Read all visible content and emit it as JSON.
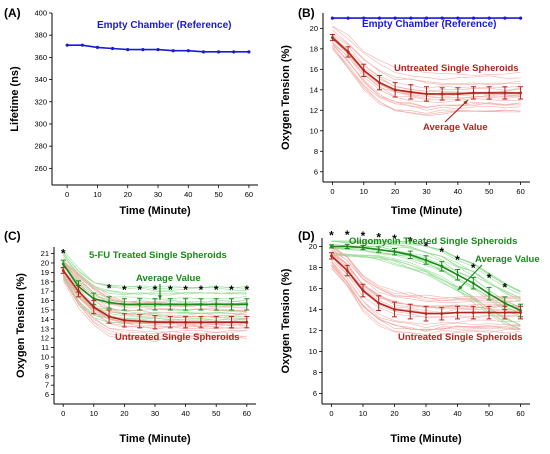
{
  "chart_data": [
    {
      "id": "A",
      "panel_label": "(A)",
      "type": "line",
      "xlabel": "Time (Minute)",
      "ylabel": "Lifetime (ns)",
      "xlim": [
        -5,
        63
      ],
      "ylim": [
        245,
        400
      ],
      "xticks": [
        0,
        10,
        20,
        30,
        40,
        50,
        60
      ],
      "yticks": [
        260,
        280,
        300,
        320,
        340,
        360,
        380,
        400
      ],
      "series": [
        {
          "name": "Empty Chamber (Reference)",
          "color": "#1a1ad6",
          "x": [
            0,
            5,
            10,
            15,
            20,
            25,
            30,
            35,
            40,
            45,
            50,
            55,
            60
          ],
          "values": [
            371,
            371,
            369,
            368,
            367,
            367,
            367,
            366,
            366,
            365,
            365,
            365,
            365
          ]
        }
      ]
    },
    {
      "id": "B",
      "panel_label": "(B)",
      "type": "line",
      "xlabel": "Time (Minute)",
      "ylabel": "Oxygen Tension (%)",
      "xlim": [
        -3,
        63
      ],
      "ylim": [
        5,
        21.5
      ],
      "xticks": [
        0,
        10,
        20,
        30,
        40,
        50,
        60
      ],
      "yticks": [
        6,
        8,
        10,
        12,
        14,
        16,
        18,
        20
      ],
      "series": [
        {
          "name": "Empty Chamber (Reference)",
          "color": "#1a1ad6",
          "x": [
            0,
            5,
            10,
            15,
            20,
            25,
            30,
            35,
            40,
            45,
            50,
            55,
            60
          ],
          "values": [
            21,
            21,
            21,
            21,
            21,
            21,
            21,
            21,
            21,
            21,
            21,
            21,
            21
          ]
        },
        {
          "name": "Untreated Single Spheroids",
          "color": "#b3261e",
          "x": [
            0,
            5,
            10,
            15,
            20,
            25,
            30,
            35,
            40,
            45,
            50,
            55,
            60
          ],
          "values": [
            19.1,
            17.7,
            15.9,
            14.7,
            14.0,
            13.8,
            13.6,
            13.6,
            13.6,
            13.7,
            13.7,
            13.7,
            13.7
          ],
          "error": [
            0.3,
            0.5,
            0.6,
            0.7,
            0.7,
            0.7,
            0.7,
            0.6,
            0.6,
            0.6,
            0.6,
            0.6,
            0.6
          ]
        }
      ],
      "annotations": [
        "Empty Chamber (Reference)",
        "Untreated Single Spheroids",
        "Average Value"
      ]
    },
    {
      "id": "C",
      "panel_label": "(C)",
      "type": "line",
      "xlabel": "Time (Minute)",
      "ylabel": "Oxygen Tension (%)",
      "xlim": [
        -3,
        63
      ],
      "ylim": [
        5,
        21.7
      ],
      "xticks": [
        0,
        10,
        20,
        30,
        40,
        50,
        60
      ],
      "yticks": [
        6,
        7,
        8,
        9,
        10,
        11,
        12,
        13,
        14,
        15,
        16,
        17,
        18,
        19,
        20,
        21
      ],
      "series": [
        {
          "name": "5-FU Treated Single Spheroids",
          "color": "#1a8a1a",
          "x": [
            0,
            5,
            10,
            15,
            20,
            25,
            30,
            35,
            40,
            45,
            50,
            55,
            60
          ],
          "values": [
            19.9,
            17.5,
            16.2,
            15.8,
            15.6,
            15.6,
            15.6,
            15.6,
            15.6,
            15.6,
            15.6,
            15.6,
            15.6
          ],
          "error": [
            0.4,
            0.6,
            0.6,
            0.6,
            0.6,
            0.6,
            0.6,
            0.6,
            0.6,
            0.6,
            0.6,
            0.6,
            0.6
          ]
        },
        {
          "name": "Untreated Single Spheroids",
          "color": "#b3261e",
          "x": [
            0,
            5,
            10,
            15,
            20,
            25,
            30,
            35,
            40,
            45,
            50,
            55,
            60
          ],
          "values": [
            19.2,
            17.0,
            15.3,
            14.3,
            13.9,
            13.8,
            13.7,
            13.7,
            13.7,
            13.7,
            13.7,
            13.7,
            13.7
          ],
          "error": [
            0.3,
            0.6,
            0.7,
            0.7,
            0.7,
            0.7,
            0.7,
            0.6,
            0.6,
            0.6,
            0.6,
            0.6,
            0.6
          ]
        }
      ],
      "significance_x": [
        0,
        15,
        20,
        25,
        30,
        35,
        40,
        45,
        50,
        55,
        60
      ],
      "annotations": [
        "5-FU Treated Single Spheroids",
        "Average Value",
        "Untreated Single Spheroids"
      ]
    },
    {
      "id": "D",
      "panel_label": "(D)",
      "type": "line",
      "xlabel": "Time (Minute)",
      "ylabel": "Oxygen Tension (%)",
      "xlim": [
        -3,
        63
      ],
      "ylim": [
        5,
        20.8
      ],
      "xticks": [
        0,
        10,
        20,
        30,
        40,
        50,
        60
      ],
      "yticks": [
        6,
        8,
        10,
        12,
        14,
        16,
        18,
        20
      ],
      "series": [
        {
          "name": "Oligomycin Treated Single Spheroids",
          "color": "#1a8a1a",
          "x": [
            0,
            5,
            10,
            15,
            20,
            25,
            30,
            35,
            40,
            45,
            50,
            55,
            60
          ],
          "values": [
            20.0,
            20.0,
            19.9,
            19.7,
            19.5,
            19.2,
            18.7,
            18.1,
            17.3,
            16.5,
            15.5,
            14.6,
            13.9
          ],
          "error": [
            0.15,
            0.2,
            0.2,
            0.25,
            0.3,
            0.35,
            0.4,
            0.45,
            0.5,
            0.55,
            0.6,
            0.6,
            0.6
          ]
        },
        {
          "name": "Untreated Single Spheroids",
          "color": "#b3261e",
          "x": [
            0,
            5,
            10,
            15,
            20,
            25,
            30,
            35,
            40,
            45,
            50,
            55,
            60
          ],
          "values": [
            19.1,
            17.7,
            15.8,
            14.6,
            14.0,
            13.8,
            13.6,
            13.6,
            13.7,
            13.7,
            13.7,
            13.7,
            13.7
          ],
          "error": [
            0.3,
            0.5,
            0.6,
            0.7,
            0.7,
            0.7,
            0.7,
            0.6,
            0.6,
            0.6,
            0.6,
            0.6,
            0.6
          ]
        }
      ],
      "significance_x": [
        0,
        5,
        10,
        15,
        20,
        25,
        30,
        35,
        40,
        45,
        50,
        55
      ],
      "annotations": [
        "Oligomycin Treated Single Spheroids",
        "Average Value",
        "Untreated Single Spheroids"
      ]
    }
  ],
  "colors": {
    "blue": "#1a1ad6",
    "red": "#b3261e",
    "red_light": "#f2a7a2",
    "green": "#1a8a1a",
    "green_light": "#8fdc8f",
    "red_band": "#fbe2e0",
    "green_band": "#dcf5dc"
  }
}
